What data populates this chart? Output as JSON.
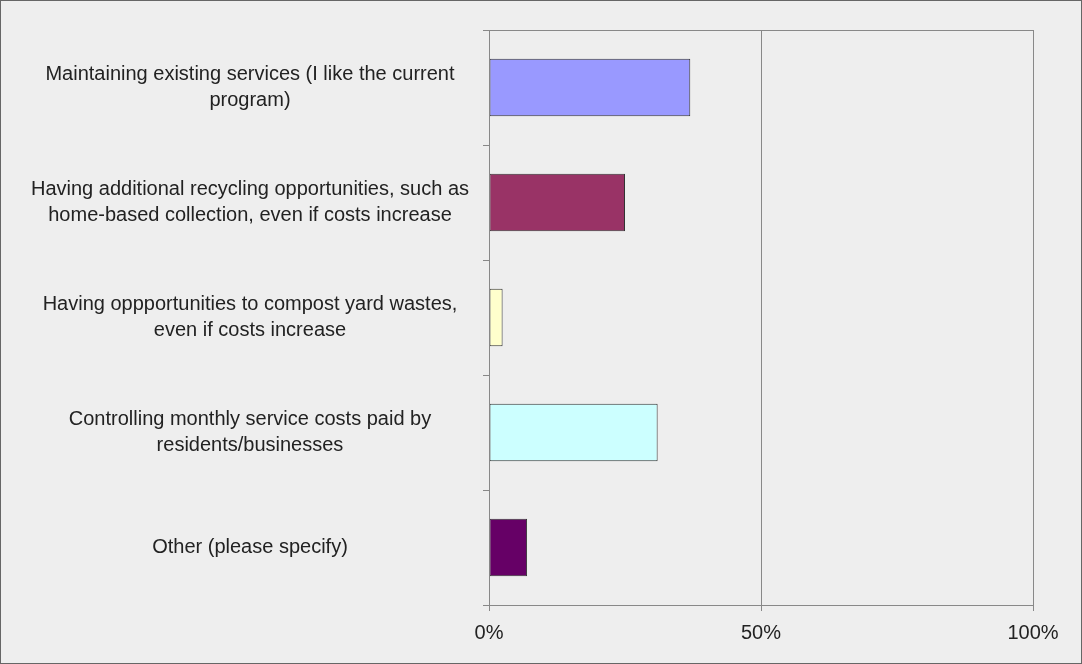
{
  "chart_data": {
    "type": "bar",
    "orientation": "horizontal",
    "categories": [
      "Maintaining existing services (I like the current program)",
      "Having additional recycling opportunities, such as home-based collection, even if costs increase",
      "Having oppportunities to compost yard wastes, even if costs increase",
      "Controlling monthly service costs paid by residents/businesses",
      "Other (please specify)"
    ],
    "values": [
      37,
      25,
      2.5,
      31,
      7
    ],
    "colors": [
      "#9999ff",
      "#993366",
      "#ffffcc",
      "#ccffff",
      "#660066"
    ],
    "xlim": [
      0,
      100
    ],
    "xticks": [
      {
        "value": 0,
        "label": "0%"
      },
      {
        "value": 50,
        "label": "50%"
      },
      {
        "value": 100,
        "label": "100%"
      }
    ],
    "grid": "x",
    "legend": false
  }
}
